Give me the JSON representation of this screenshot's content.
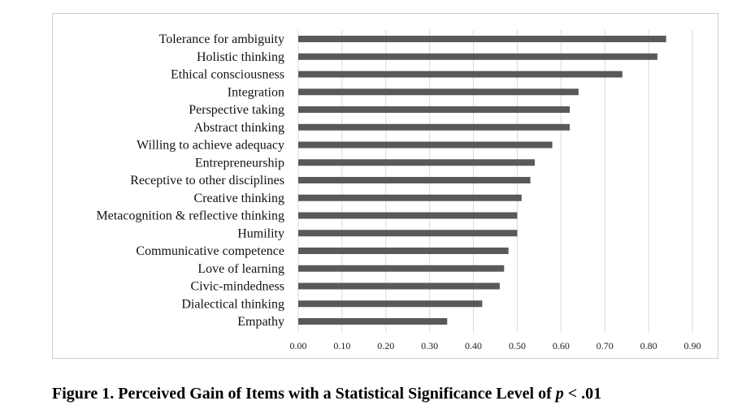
{
  "caption": {
    "prefix": "Figure 1. Perceived Gain of Items with a Statistical Significance Level of ",
    "italic": "p",
    "suffix": " < .01"
  },
  "colors": {
    "bar": "#595959",
    "grid": "#d9d9d9",
    "frame": "#d0d0d0"
  },
  "chart_data": {
    "type": "bar",
    "orientation": "horizontal",
    "title": "",
    "xlabel": "",
    "ylabel": "",
    "xlim": [
      0,
      0.9
    ],
    "ticks": [
      "0.00",
      "0.10",
      "0.20",
      "0.30",
      "0.40",
      "0.50",
      "0.60",
      "0.70",
      "0.80",
      "0.90"
    ],
    "tick_values": [
      0,
      0.1,
      0.2,
      0.3,
      0.4,
      0.5,
      0.6,
      0.7,
      0.8,
      0.9
    ],
    "grid": true,
    "categories": [
      "Tolerance for ambiguity",
      "Holistic thinking",
      "Ethical consciousness",
      "Integration",
      "Perspective taking",
      "Abstract thinking",
      "Willing to achieve adequacy",
      "Entrepreneurship",
      "Receptive to other disciplines",
      "Creative thinking",
      "Metacognition & reflective thinking",
      "Humility",
      "Communicative competence",
      "Love of learning",
      "Civic-mindedness",
      "Dialectical thinking",
      "Empathy"
    ],
    "values": [
      0.84,
      0.82,
      0.74,
      0.64,
      0.62,
      0.62,
      0.58,
      0.54,
      0.53,
      0.51,
      0.5,
      0.5,
      0.48,
      0.47,
      0.46,
      0.42,
      0.34
    ]
  }
}
